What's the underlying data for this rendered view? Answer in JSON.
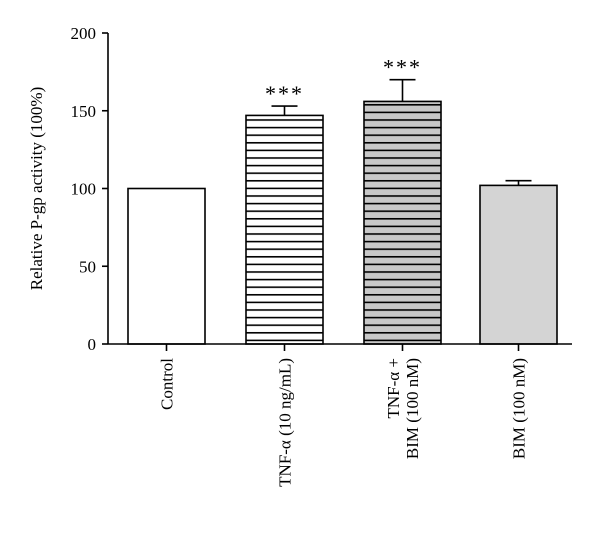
{
  "chart_data": {
    "type": "bar",
    "ylabel": "Relative P-gp activity (100%)",
    "ylim": [
      0,
      200
    ],
    "yticks": [
      0,
      50,
      100,
      150,
      200
    ],
    "categories": [
      {
        "lines": [
          "Control"
        ]
      },
      {
        "lines": [
          "TNF-α (10 ng/mL)"
        ]
      },
      {
        "lines": [
          "TNF-α +",
          "BIM (100 nM)"
        ]
      },
      {
        "lines": [
          "BIM (100 nM)"
        ]
      }
    ],
    "values": [
      100,
      147,
      156,
      102
    ],
    "errors": [
      0,
      6,
      14,
      3
    ],
    "significance": [
      "",
      "***",
      "***",
      ""
    ],
    "fills": [
      "white",
      "horizontal-stripes",
      "gray-horizontal-stripes",
      "light-gray"
    ],
    "colors": {
      "light_gray": "#d4d4d4",
      "stripe_gray": "#c8c8c8"
    },
    "grid": false
  }
}
